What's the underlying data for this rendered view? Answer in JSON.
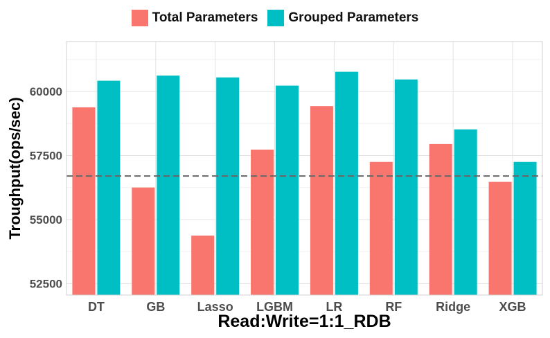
{
  "chart_data": {
    "type": "bar",
    "title": "",
    "xlabel": "Read:Write=1:1_RDB",
    "ylabel": "Troughput(ops/sec)",
    "categories": [
      "DT",
      "GB",
      "Lasso",
      "LGBM",
      "LR",
      "RF",
      "Ridge",
      "XGB"
    ],
    "series": [
      {
        "name": "Total Parameters",
        "color": "#F8766D",
        "values": [
          59380,
          56250,
          54370,
          57730,
          59430,
          57250,
          57950,
          56470
        ]
      },
      {
        "name": "Grouped Parameters",
        "color": "#00BFC4",
        "values": [
          60420,
          60620,
          60550,
          60230,
          60770,
          60470,
          58520,
          57250
        ]
      }
    ],
    "ylim": [
      52050,
      61950
    ],
    "yticks": [
      52500,
      55000,
      57500,
      60000
    ],
    "reference_line": {
      "value": 56700,
      "style": "dashed"
    },
    "grid": true,
    "legend": "top"
  }
}
